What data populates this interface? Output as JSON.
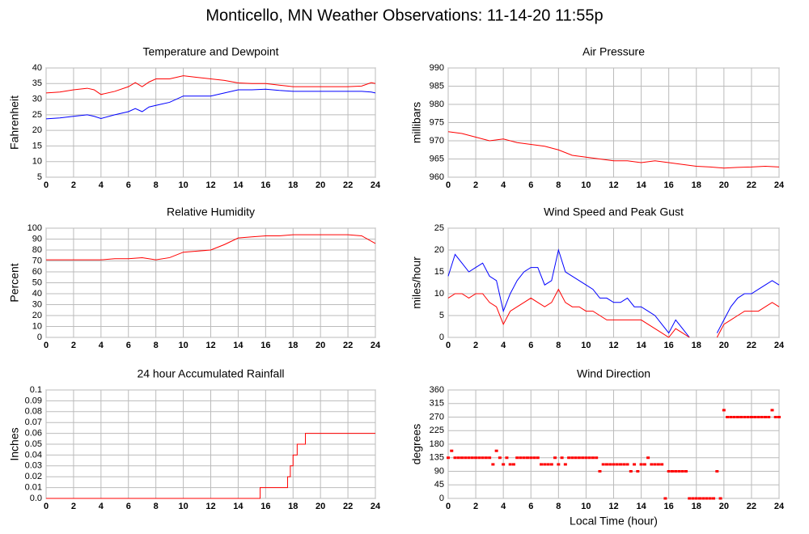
{
  "title": "Monticello, MN Weather Observations: 11-14-20 11:55p",
  "chart_data": [
    {
      "type": "line",
      "title": "Temperature and Dewpoint",
      "ylabel": "Fahrenheit",
      "grid": true,
      "xlim": [
        0,
        24
      ],
      "xticks": [
        0,
        2,
        4,
        6,
        8,
        10,
        12,
        14,
        16,
        18,
        20,
        22,
        24
      ],
      "ylim": [
        5,
        40
      ],
      "yticks": [
        5,
        10,
        15,
        20,
        25,
        30,
        35,
        40
      ],
      "x": [
        0,
        1,
        2,
        3,
        3.5,
        4,
        5,
        6,
        6.5,
        7,
        7.5,
        8,
        9,
        10,
        11,
        12,
        13,
        14,
        15,
        16,
        17,
        18,
        19,
        20,
        21,
        22,
        23,
        23.7,
        24
      ],
      "series": [
        {
          "color": "#ff0000",
          "values": [
            32,
            32.3,
            33,
            33.5,
            33,
            31.5,
            32.5,
            34,
            35.3,
            34,
            35.5,
            36.5,
            36.5,
            37.5,
            37,
            36.5,
            36,
            35.2,
            35,
            35,
            34.5,
            34,
            34,
            34,
            34,
            34,
            34.2,
            35.3,
            35
          ]
        },
        {
          "color": "#0000ff",
          "values": [
            23.7,
            24,
            24.5,
            25,
            24.5,
            23.8,
            25,
            26,
            27,
            26,
            27.5,
            28,
            29,
            31,
            31,
            31,
            32,
            33,
            33,
            33.2,
            32.8,
            32.5,
            32.5,
            32.5,
            32.5,
            32.5,
            32.5,
            32.3,
            32
          ]
        }
      ]
    },
    {
      "type": "line",
      "title": "Air Pressure",
      "ylabel": "millibars",
      "grid": true,
      "xlim": [
        0,
        24
      ],
      "xticks": [
        0,
        2,
        4,
        6,
        8,
        10,
        12,
        14,
        16,
        18,
        20,
        22,
        24
      ],
      "ylim": [
        960,
        990
      ],
      "yticks": [
        960,
        965,
        970,
        975,
        980,
        985,
        990
      ],
      "x": [
        0,
        1,
        2,
        3,
        4,
        5,
        6,
        7,
        8,
        9,
        10,
        11,
        12,
        13,
        14,
        15,
        16,
        17,
        18,
        19,
        20,
        21,
        22,
        23,
        24
      ],
      "series": [
        {
          "color": "#ff0000",
          "values": [
            972.5,
            972,
            971,
            970,
            970.5,
            969.5,
            969,
            968.5,
            967.5,
            966,
            965.5,
            965,
            964.5,
            964.5,
            964,
            964.5,
            964,
            963.5,
            963,
            962.8,
            962.5,
            962.7,
            962.8,
            963,
            962.8
          ]
        }
      ]
    },
    {
      "type": "line",
      "title": "Relative Humidity",
      "ylabel": "Percent",
      "grid": true,
      "xlim": [
        0,
        24
      ],
      "xticks": [
        0,
        2,
        4,
        6,
        8,
        10,
        12,
        14,
        16,
        18,
        20,
        22,
        24
      ],
      "ylim": [
        0,
        100
      ],
      "yticks": [
        0,
        10,
        20,
        30,
        40,
        50,
        60,
        70,
        80,
        90,
        100
      ],
      "x": [
        0,
        1,
        2,
        3,
        4,
        5,
        6,
        7,
        8,
        9,
        10,
        11,
        12,
        13,
        14,
        15,
        16,
        17,
        18,
        19,
        20,
        21,
        22,
        23,
        24
      ],
      "series": [
        {
          "color": "#ff0000",
          "values": [
            71,
            71,
            71,
            71,
            71,
            72,
            72,
            73,
            71,
            73,
            78,
            79,
            80,
            85,
            91,
            92,
            93,
            93,
            94,
            94,
            94,
            94,
            94,
            93,
            86
          ]
        }
      ]
    },
    {
      "type": "line",
      "title": "Wind Speed and Peak Gust",
      "ylabel": "miles/hour",
      "grid": true,
      "xlim": [
        0,
        24
      ],
      "xticks": [
        0,
        2,
        4,
        6,
        8,
        10,
        12,
        14,
        16,
        18,
        20,
        22,
        24
      ],
      "ylim": [
        0,
        25
      ],
      "yticks": [
        0,
        5,
        10,
        15,
        20,
        25
      ],
      "x": [
        0,
        0.5,
        1,
        1.5,
        2,
        2.5,
        3,
        3.5,
        4,
        4.5,
        5,
        5.5,
        6,
        6.5,
        7,
        7.5,
        8,
        8.5,
        9,
        9.5,
        10,
        10.5,
        11,
        11.5,
        12,
        12.5,
        13,
        13.5,
        14,
        14.5,
        15,
        15.5,
        16,
        16.5,
        17,
        17.5,
        18,
        18.5,
        19,
        19.5,
        20,
        20.5,
        21,
        21.5,
        22,
        22.5,
        23,
        23.5,
        24
      ],
      "series": [
        {
          "color": "#0000ff",
          "values": [
            14,
            19,
            17,
            15,
            16,
            17,
            14,
            13,
            6,
            10,
            13,
            15,
            16,
            16,
            12,
            13,
            20,
            15,
            14,
            13,
            12,
            11,
            9,
            9,
            8,
            8,
            9,
            7,
            7,
            6,
            5,
            3,
            1,
            4,
            2,
            0,
            null,
            null,
            null,
            1,
            4,
            7,
            9,
            10,
            10,
            11,
            12,
            13,
            12
          ]
        },
        {
          "color": "#ff0000",
          "values": [
            9,
            10,
            10,
            9,
            10,
            10,
            8,
            7,
            3,
            6,
            7,
            8,
            9,
            8,
            7,
            8,
            11,
            8,
            7,
            7,
            6,
            6,
            5,
            4,
            4,
            4,
            4,
            4,
            4,
            3,
            2,
            1,
            0,
            2,
            1,
            0,
            null,
            null,
            null,
            0,
            3,
            4,
            5,
            6,
            6,
            6,
            7,
            8,
            7
          ]
        }
      ]
    },
    {
      "type": "line",
      "title": "24 hour Accumulated Rainfall",
      "ylabel": "Inches",
      "grid": true,
      "xlim": [
        0,
        24
      ],
      "xticks": [
        0,
        2,
        4,
        6,
        8,
        10,
        12,
        14,
        16,
        18,
        20,
        22,
        24
      ],
      "ylim": [
        0,
        0.1
      ],
      "yticks": [
        {
          "value": 0,
          "label": "0.0"
        },
        0.01,
        0.02,
        0.03,
        0.04,
        0.05,
        0.06,
        0.07,
        0.08,
        0.09,
        0.1
      ],
      "x": [
        0,
        15.6,
        15.6,
        17.6,
        17.6,
        17.8,
        17.8,
        18.0,
        18.0,
        18.3,
        18.3,
        18.9,
        18.9,
        24
      ],
      "series": [
        {
          "color": "#ff0000",
          "values": [
            0,
            0,
            0.01,
            0.01,
            0.02,
            0.02,
            0.03,
            0.03,
            0.04,
            0.04,
            0.05,
            0.05,
            0.06,
            0.06
          ]
        }
      ]
    },
    {
      "type": "scatter",
      "title": "Wind Direction",
      "ylabel": "degrees",
      "xlabel": "Local Time (hour)",
      "grid": true,
      "xlim": [
        0,
        24
      ],
      "xticks": [
        0,
        2,
        4,
        6,
        8,
        10,
        12,
        14,
        16,
        18,
        20,
        22,
        24
      ],
      "ylim": [
        0,
        360
      ],
      "yticks": [
        0,
        45,
        90,
        135,
        180,
        225,
        270,
        315,
        360
      ],
      "x": [
        0,
        0.25,
        0.5,
        0.75,
        1,
        1.25,
        1.5,
        1.75,
        2,
        2.25,
        2.5,
        2.75,
        3,
        3.25,
        3.5,
        3.75,
        4,
        4.25,
        4.5,
        4.75,
        5,
        5.25,
        5.5,
        5.75,
        6,
        6.25,
        6.5,
        6.75,
        7,
        7.25,
        7.5,
        7.75,
        8,
        8.25,
        8.5,
        8.75,
        9,
        9.25,
        9.5,
        9.75,
        10,
        10.25,
        10.5,
        10.75,
        11,
        11.25,
        11.5,
        11.75,
        12,
        12.25,
        12.5,
        12.75,
        13,
        13.25,
        13.5,
        13.75,
        14,
        14.25,
        14.5,
        14.75,
        15,
        15.25,
        15.5,
        15.75,
        16,
        16.25,
        16.5,
        16.75,
        17,
        17.25,
        17.5,
        17.75,
        18,
        18.25,
        18.5,
        18.75,
        19,
        19.25,
        19.5,
        19.75,
        20,
        20.25,
        20.5,
        20.75,
        21,
        21.25,
        21.5,
        21.75,
        22,
        22.25,
        22.5,
        22.75,
        23,
        23.25,
        23.5,
        23.75,
        24
      ],
      "series": [
        {
          "color": "#ff0000",
          "values": [
            135,
            158,
            135,
            135,
            135,
            135,
            135,
            135,
            135,
            135,
            135,
            135,
            135,
            113,
            158,
            135,
            113,
            135,
            113,
            113,
            135,
            135,
            135,
            135,
            135,
            135,
            135,
            113,
            113,
            113,
            113,
            135,
            113,
            135,
            113,
            135,
            135,
            135,
            135,
            135,
            135,
            135,
            135,
            135,
            90,
            113,
            113,
            113,
            113,
            113,
            113,
            113,
            113,
            90,
            113,
            90,
            113,
            113,
            135,
            113,
            113,
            113,
            113,
            0,
            90,
            90,
            90,
            90,
            90,
            90,
            0,
            0,
            0,
            0,
            0,
            0,
            0,
            0,
            90,
            0,
            293,
            270,
            270,
            270,
            270,
            270,
            270,
            270,
            270,
            270,
            270,
            270,
            270,
            270,
            293,
            270,
            270
          ]
        }
      ]
    }
  ]
}
